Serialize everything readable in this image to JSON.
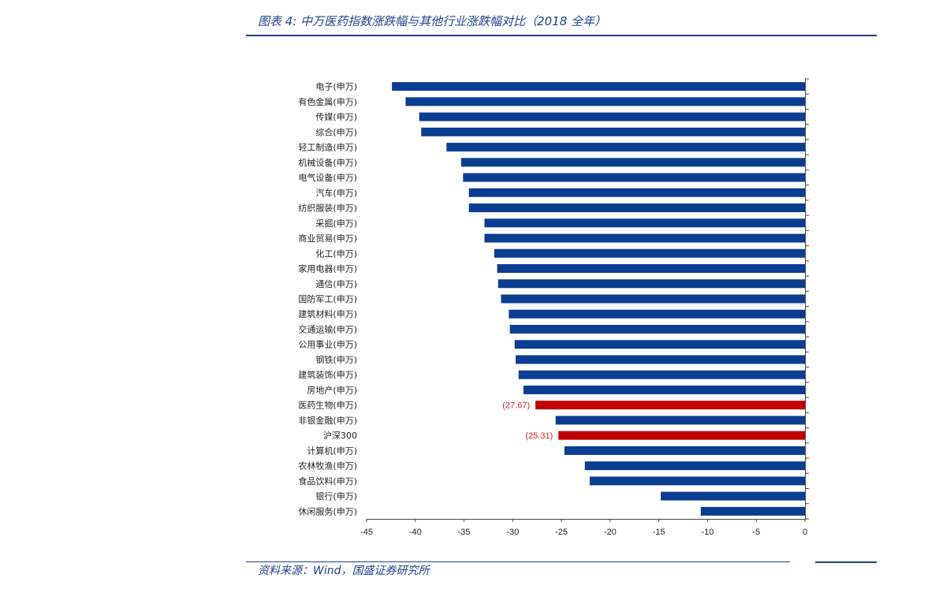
{
  "figure": {
    "title": "图表 4:  中万医药指数涨跌幅与其他行业涨跌幅对比（2018 全年）",
    "source": "资料来源：Wind，国盛证券研究所"
  },
  "colors": {
    "bar": "#0b3d91",
    "highlight": "#c00000",
    "rule": "#1f3f8f"
  },
  "chart_data": {
    "type": "bar",
    "orientation": "horizontal",
    "categories": [
      "电子(申万)",
      "有色金属(申万)",
      "传媒(申万)",
      "综合(申万)",
      "轻工制造(申万)",
      "机械设备(申万)",
      "电气设备(申万)",
      "汽车(申万)",
      "纺织服装(申万)",
      "采掘(申万)",
      "商业贸易(申万)",
      "化工(申万)",
      "家用电器(申万)",
      "通信(申万)",
      "国防军工(申万)",
      "建筑材料(申万)",
      "交通运输(申万)",
      "公用事业(申万)",
      "钢铁(申万)",
      "建筑装饰(申万)",
      "房地产(申万)",
      "医药生物(申万)",
      "非银金融(申万)",
      "沪深300",
      "计算机(申万)",
      "农林牧渔(申万)",
      "食品饮料(申万)",
      "银行(申万)",
      "休闲服务(申万)"
    ],
    "values": [
      -42.4,
      -41.0,
      -39.6,
      -39.4,
      -36.8,
      -35.3,
      -35.1,
      -34.5,
      -34.5,
      -32.9,
      -32.9,
      -31.9,
      -31.6,
      -31.5,
      -31.2,
      -30.4,
      -30.3,
      -29.8,
      -29.7,
      -29.4,
      -28.9,
      -27.67,
      -25.6,
      -25.31,
      -24.7,
      -22.6,
      -22.1,
      -14.8,
      -10.7
    ],
    "highlight": [
      "医药生物(申万)",
      "沪深300"
    ],
    "data_labels": {
      "医药生物(申万)": "(27.67)",
      "沪深300": "(25.31)"
    },
    "xlim": [
      -45,
      0
    ],
    "xticks": [
      -45,
      -40,
      -35,
      -30,
      -25,
      -20,
      -15,
      -10,
      -5,
      0
    ],
    "grid": false,
    "legend": "none"
  }
}
